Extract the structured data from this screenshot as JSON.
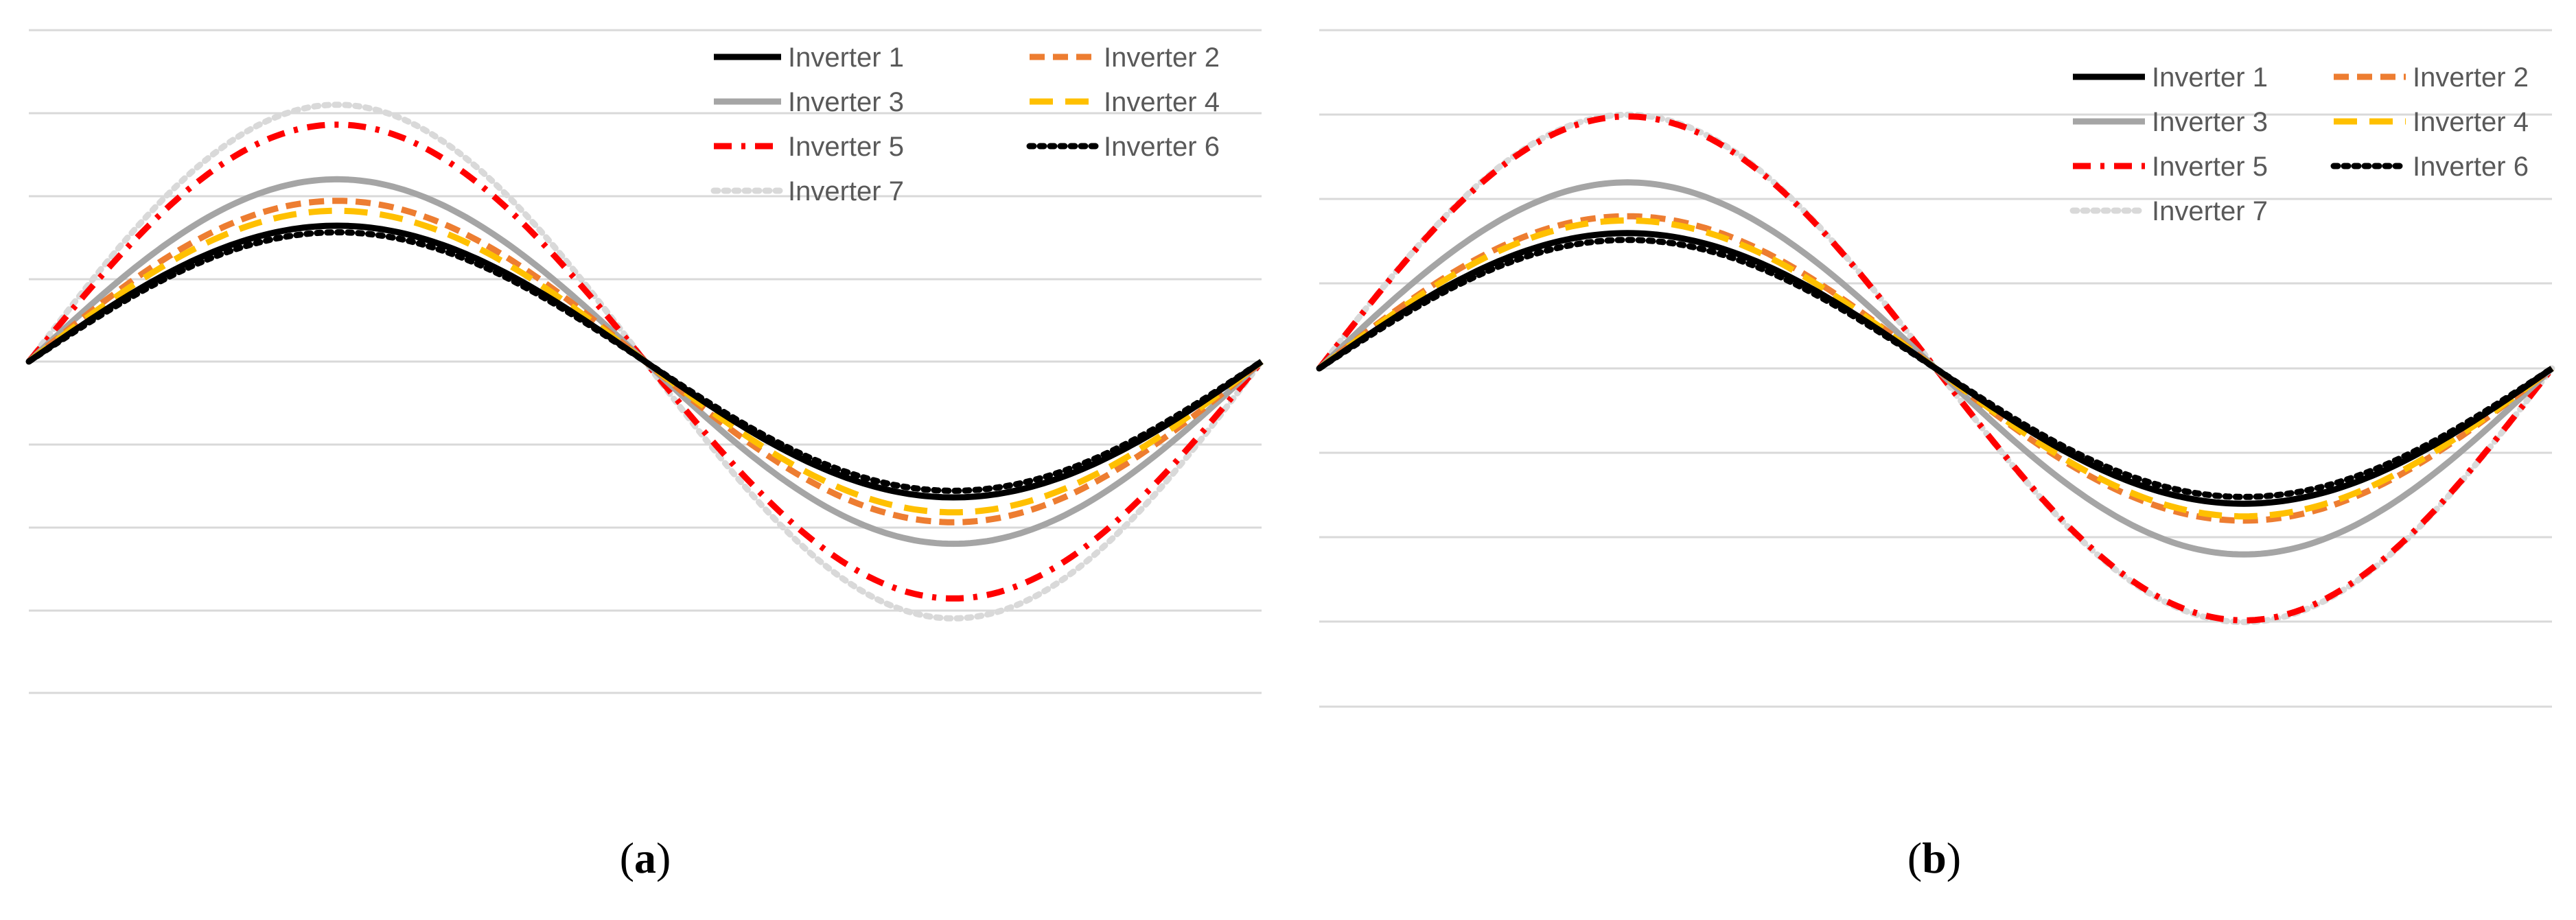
{
  "chart_data": [
    {
      "panel": "a",
      "type": "line",
      "ylim": [
        -4,
        4
      ],
      "grid": true,
      "legend_placement": "top-right",
      "series": [
        {
          "name": "Inverter 1",
          "amplitude": 1.64
        },
        {
          "name": "Inverter 2",
          "amplitude": 1.94
        },
        {
          "name": "Inverter 3",
          "amplitude": 2.2
        },
        {
          "name": "Inverter 4",
          "amplitude": 1.82
        },
        {
          "name": "Inverter 5",
          "amplitude": 2.86
        },
        {
          "name": "Inverter 6",
          "amplitude": 1.56
        },
        {
          "name": "Inverter 7",
          "amplitude": 3.1
        }
      ]
    },
    {
      "panel": "b",
      "type": "line",
      "ylim": [
        -4,
        4
      ],
      "grid": true,
      "legend_placement": "top-right",
      "series": [
        {
          "name": "Inverter 1",
          "amplitude": 1.6
        },
        {
          "name": "Inverter 2",
          "amplitude": 1.8
        },
        {
          "name": "Inverter 3",
          "amplitude": 2.2
        },
        {
          "name": "Inverter 4",
          "amplitude": 1.75
        },
        {
          "name": "Inverter 5",
          "amplitude": 2.98
        },
        {
          "name": "Inverter 6",
          "amplitude": 1.52
        },
        {
          "name": "Inverter 7",
          "amplitude": 3.0
        }
      ]
    }
  ],
  "styles": {
    "Inverter 1": {
      "color": "#000000",
      "dash": "solid"
    },
    "Inverter 2": {
      "color": "#ED7D31",
      "dash": "dash"
    },
    "Inverter 3": {
      "color": "#A5A5A5",
      "dash": "solid"
    },
    "Inverter 4": {
      "color": "#FFC000",
      "dash": "longdash"
    },
    "Inverter 5": {
      "color": "#FF0000",
      "dash": "dashdot"
    },
    "Inverter 6": {
      "color": "#000000",
      "dash": "dot"
    },
    "Inverter 7": {
      "color": "#D9D9D9",
      "dash": "dot"
    }
  },
  "captions": {
    "a": {
      "open": "(",
      "letter": "a",
      "close": ")"
    },
    "b": {
      "open": "(",
      "letter": "b",
      "close": ")"
    }
  }
}
